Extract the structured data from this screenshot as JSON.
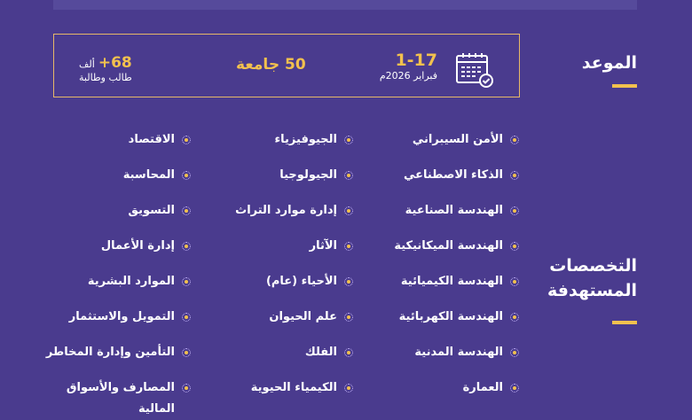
{
  "sections": {
    "date_heading": "الموعد",
    "majors_heading_line1": "التخصصات",
    "majors_heading_line2": "المستهدفة"
  },
  "stats": {
    "date_range": "1-17",
    "date_month": "فبراير 2026م",
    "universities": "50 جامعة",
    "students_count": "+68",
    "students_unit": "ألف",
    "students_label": "طالب وطالبة"
  },
  "icons": {
    "calendar": "calendar-check-icon",
    "bullet": "dotted-circle-bullet-icon"
  },
  "colors": {
    "background": "#4a3b8e",
    "accent": "#f2c14e",
    "text": "#ffffff"
  },
  "majors": {
    "column1": [
      "الأمن السيبراني",
      "الذكاء الاصطناعي",
      "الهندسة الصناعية",
      "الهندسة الميكانيكية",
      "الهندسة الكيميائية",
      "الهندسة الكهربائية",
      "الهندسة المدنية",
      "العمارة"
    ],
    "column2": [
      "الجيوفيزياء",
      "الجيولوجيا",
      "إدارة موارد التراث",
      "الآثار",
      "الأحياء (عام)",
      "علم الحيوان",
      "الفلك",
      "الكيمياء الحيوية"
    ],
    "column3": [
      "الاقتصاد",
      "المحاسبة",
      "التسويق",
      "إدارة الأعمال",
      "الموارد البشرية",
      "التمويل والاستثمار",
      "التأمين وإدارة المخاطر",
      "المصارف والأسواق المالية"
    ]
  }
}
